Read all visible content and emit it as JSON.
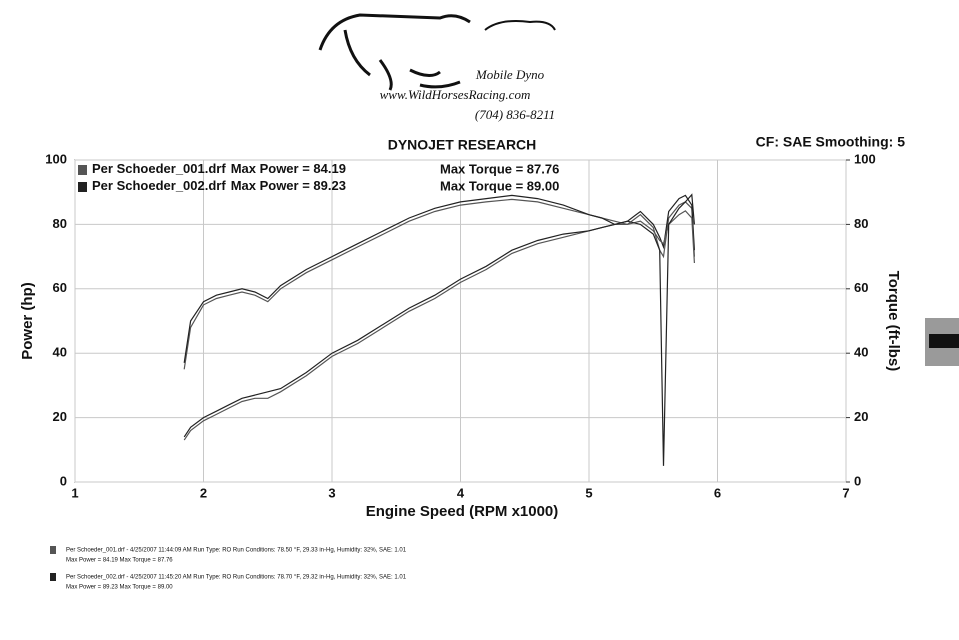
{
  "header": {
    "company": "Mobile Dyno",
    "website": "www.WildHorsesRacing.com",
    "phone": "(704) 836-8211"
  },
  "chart_data": {
    "type": "line",
    "title": "DYNOJET RESEARCH",
    "settings_label": "CF: SAE  Smoothing: 5",
    "x_label": "Engine Speed (RPM x1000)",
    "y_label": "Power (hp)",
    "y2_label": "Torque (ft-lbs)",
    "xlim": [
      1,
      7
    ],
    "xticks": [
      1,
      2,
      3,
      4,
      5,
      6,
      7
    ],
    "ylim": [
      0,
      100
    ],
    "yticks": [
      0,
      20,
      40,
      60,
      80,
      100
    ],
    "y2lim": [
      0,
      100
    ],
    "y2ticks": [
      0,
      20,
      40,
      60,
      80,
      100
    ],
    "grid": true,
    "x": [
      1.85,
      1.9,
      2.0,
      2.1,
      2.2,
      2.3,
      2.4,
      2.5,
      2.6,
      2.8,
      3.0,
      3.2,
      3.4,
      3.6,
      3.8,
      4.0,
      4.2,
      4.4,
      4.6,
      4.8,
      5.0,
      5.1,
      5.2,
      5.3,
      5.4,
      5.5,
      5.55,
      5.58,
      5.62,
      5.7,
      5.75,
      5.8,
      5.82
    ],
    "runs": [
      {
        "name": "Per Schoeder_001.drf",
        "max_power_label": "Max Power = 84.19",
        "max_torque_label": "Max Torque = 87.76",
        "color": "#555555",
        "details": "Per Schoeder_001.drf - 4/25/2007 11:44:09 AM  Run Type: RO  Run Conditions: 78.50 °F, 29.33 in-Hg,  Humidity: 32%, SAE: 1.01",
        "summary": "Max Power = 84.19  Max Torque = 87.76",
        "power": [
          13,
          16,
          19,
          21,
          23,
          25,
          26,
          26,
          28,
          33,
          39,
          43,
          48,
          53,
          57,
          62,
          66,
          71,
          74,
          76,
          78,
          79,
          80,
          80,
          81,
          78,
          75,
          74,
          80,
          83,
          84.19,
          82,
          68
        ],
        "torque": [
          35,
          48,
          55,
          57,
          58,
          59,
          58,
          56,
          60,
          65,
          69,
          73,
          77,
          81,
          84,
          86,
          87,
          87.76,
          87,
          85,
          83,
          82,
          81,
          80,
          83,
          79,
          72,
          70,
          82,
          86,
          87,
          85,
          70
        ]
      },
      {
        "name": "Per Schoeder_002.drf",
        "max_power_label": "Max Power = 89.23",
        "max_torque_label": "Max Torque = 89.00",
        "color": "#222222",
        "details": "Per Schoeder_002.drf - 4/25/2007 11:45:20 AM  Run Type: RO  Run Conditions: 78.70 °F, 29.32 in-Hg,  Humidity: 32%, SAE: 1.01",
        "summary": "Max Power = 89.23  Max Torque = 89.00",
        "power": [
          14,
          17,
          20,
          22,
          24,
          26,
          27,
          28,
          29,
          34,
          40,
          44,
          49,
          54,
          58,
          63,
          67,
          72,
          75,
          77,
          78,
          79,
          80,
          81,
          80,
          77,
          72,
          5,
          80,
          85,
          87,
          89.23,
          80
        ],
        "torque": [
          37,
          50,
          56,
          58,
          59,
          60,
          59,
          57,
          61,
          66,
          70,
          74,
          78,
          82,
          85,
          87,
          88,
          89,
          88,
          86,
          83,
          82,
          80,
          81,
          84,
          80,
          76,
          73,
          84,
          88,
          89,
          86,
          72
        ]
      }
    ]
  }
}
